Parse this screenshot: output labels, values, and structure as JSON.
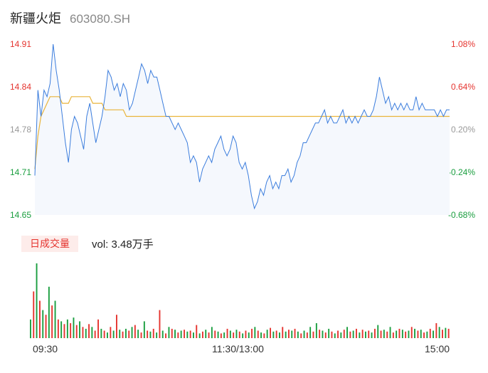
{
  "header": {
    "name": "新疆火炬",
    "code": "603080.SH"
  },
  "colors": {
    "up": "#e5342f",
    "down": "#1a9e3f",
    "price_line": "#3b7ddd",
    "avg_line": "#e9b43b",
    "flat": "#999999"
  },
  "volume": {
    "tag": "日成交量",
    "text": "vol: 3.48万手"
  },
  "chart_data": [
    {
      "type": "line",
      "title": "",
      "y_ticks_left": [
        "14.91",
        "14.84",
        "14.78",
        "14.71",
        "14.65"
      ],
      "y_ticks_right": [
        "1.08%",
        "0.64%",
        "0.20%",
        "-0.24%",
        "-0.68%"
      ],
      "ylim": [
        14.65,
        14.91
      ],
      "x_ticks": [
        "09:30",
        "11:30/13:00",
        "15:00"
      ],
      "series": [
        {
          "values": [
            14.71,
            14.84,
            14.8,
            14.84,
            14.83,
            14.85,
            14.91,
            14.87,
            14.84,
            14.8,
            14.76,
            14.73,
            14.78,
            14.8,
            14.79,
            14.77,
            14.75,
            14.8,
            14.82,
            14.79,
            14.76,
            14.78,
            14.8,
            14.83,
            14.87,
            14.86,
            14.84,
            14.85,
            14.83,
            14.85,
            14.84,
            14.81,
            14.82,
            14.84,
            14.86,
            14.88,
            14.87,
            14.85,
            14.87,
            14.86,
            14.86,
            14.84,
            14.82,
            14.8,
            14.8,
            14.79,
            14.78,
            14.79,
            14.78,
            14.77,
            14.76,
            14.73,
            14.74,
            14.73,
            14.7,
            14.72,
            14.73,
            14.74,
            14.73,
            14.75,
            14.76,
            14.77,
            14.75,
            14.74,
            14.75,
            14.77,
            14.76,
            14.73,
            14.72,
            14.73,
            14.71,
            14.68,
            14.66,
            14.67,
            14.69,
            14.68,
            14.7,
            14.71,
            14.69,
            14.7,
            14.69,
            14.71,
            14.71,
            14.72,
            14.7,
            14.71,
            14.73,
            14.74,
            14.76,
            14.76,
            14.77,
            14.78,
            14.79,
            14.79,
            14.8,
            14.81,
            14.79,
            14.8,
            14.79,
            14.79,
            14.8,
            14.81,
            14.79,
            14.8,
            14.79,
            14.8,
            14.79,
            14.8,
            14.81,
            14.8,
            14.8,
            14.81,
            14.83,
            14.86,
            14.84,
            14.82,
            14.83,
            14.81,
            14.82,
            14.81,
            14.82,
            14.81,
            14.82,
            14.81,
            14.81,
            14.83,
            14.81,
            14.82,
            14.81,
            14.81,
            14.81,
            14.81,
            14.8,
            14.81,
            14.8,
            14.81,
            14.81
          ]
        },
        {
          "values": [
            14.72,
            14.77,
            14.8,
            14.81,
            14.82,
            14.83,
            14.83,
            14.83,
            14.83,
            14.82,
            14.82,
            14.82,
            14.83,
            14.83,
            14.83,
            14.83,
            14.83,
            14.83,
            14.83,
            14.82,
            14.82,
            14.82,
            14.82,
            14.81,
            14.81,
            14.81,
            14.81,
            14.81,
            14.81,
            14.81,
            14.8,
            14.8,
            14.8,
            14.8,
            14.8,
            14.8,
            14.8,
            14.8,
            14.8,
            14.8,
            14.8,
            14.8,
            14.8,
            14.8,
            14.8,
            14.8,
            14.8,
            14.8,
            14.8,
            14.8,
            14.8,
            14.8,
            14.8,
            14.8,
            14.8,
            14.8,
            14.8,
            14.8,
            14.8,
            14.8,
            14.8,
            14.8,
            14.8,
            14.8,
            14.8,
            14.8,
            14.8,
            14.8,
            14.8,
            14.8,
            14.8,
            14.8,
            14.8,
            14.8,
            14.8,
            14.8,
            14.8,
            14.8,
            14.8,
            14.8,
            14.8,
            14.8,
            14.8,
            14.8,
            14.8,
            14.8,
            14.8,
            14.8,
            14.8,
            14.8,
            14.8,
            14.8,
            14.8,
            14.8,
            14.8,
            14.8,
            14.8,
            14.8,
            14.8,
            14.8,
            14.8,
            14.8,
            14.8,
            14.8,
            14.8,
            14.8,
            14.8,
            14.8,
            14.8,
            14.8,
            14.8,
            14.8,
            14.8,
            14.8,
            14.8,
            14.8,
            14.8,
            14.8,
            14.8,
            14.8,
            14.8,
            14.8,
            14.8,
            14.8,
            14.8,
            14.8,
            14.8,
            14.8,
            14.8,
            14.8,
            14.8,
            14.8,
            14.8,
            14.8,
            14.8,
            14.8,
            14.8
          ]
        }
      ]
    },
    {
      "type": "bar",
      "title": "",
      "volumes": [
        20,
        50,
        80,
        40,
        30,
        25,
        55,
        35,
        40,
        20,
        18,
        15,
        20,
        16,
        22,
        14,
        18,
        12,
        10,
        15,
        12,
        8,
        20,
        10,
        8,
        6,
        12,
        8,
        25,
        9,
        7,
        10,
        8,
        12,
        14,
        9,
        6,
        18,
        8,
        7,
        10,
        6,
        30,
        8,
        5,
        12,
        10,
        9,
        6,
        8,
        9,
        7,
        8,
        6,
        14,
        5,
        7,
        9,
        6,
        12,
        8,
        7,
        5,
        6,
        10,
        8,
        6,
        9,
        7,
        5,
        8,
        6,
        10,
        12,
        8,
        6,
        5,
        9,
        11,
        7,
        8,
        6,
        12,
        7,
        9,
        8,
        10,
        7,
        5,
        8,
        6,
        12,
        7,
        16,
        9,
        8,
        6,
        10,
        7,
        5,
        8,
        6,
        9,
        12,
        7,
        8,
        10,
        6,
        9,
        7,
        8,
        6,
        10,
        14,
        8,
        9,
        7,
        12,
        6,
        8,
        10,
        9,
        7,
        8,
        12,
        10,
        8,
        9,
        6,
        7,
        10,
        8,
        16,
        12,
        9,
        11,
        10
      ],
      "directions": [
        "down",
        "up",
        "down",
        "up",
        "down",
        "up",
        "down",
        "up",
        "down",
        "up",
        "down",
        "up",
        "down",
        "up",
        "down",
        "up",
        "down",
        "up",
        "down",
        "up",
        "down",
        "up",
        "up",
        "down",
        "up",
        "down",
        "up",
        "down",
        "up",
        "down",
        "up",
        "down",
        "up",
        "down",
        "up",
        "down",
        "up",
        "down",
        "up",
        "down",
        "up",
        "down",
        "up",
        "down",
        "up",
        "down",
        "up",
        "down",
        "up",
        "down",
        "up",
        "down",
        "up",
        "down",
        "up",
        "down",
        "up",
        "down",
        "up",
        "down",
        "up",
        "down",
        "up",
        "down",
        "up",
        "down",
        "up",
        "down",
        "up",
        "down",
        "up",
        "down",
        "up",
        "down",
        "up",
        "down",
        "up",
        "down",
        "up",
        "down",
        "up",
        "down",
        "up",
        "down",
        "up",
        "down",
        "up",
        "down",
        "up",
        "down",
        "up",
        "down",
        "up",
        "down",
        "up",
        "down",
        "up",
        "down",
        "up",
        "down",
        "up",
        "down",
        "up",
        "down",
        "up",
        "down",
        "up",
        "down",
        "up",
        "down",
        "up",
        "down",
        "up",
        "down",
        "up",
        "down",
        "up",
        "down",
        "up",
        "down",
        "up",
        "down",
        "up",
        "down",
        "up",
        "down",
        "up",
        "down",
        "up",
        "down",
        "up",
        "down",
        "up",
        "down",
        "up",
        "down",
        "up"
      ]
    }
  ]
}
